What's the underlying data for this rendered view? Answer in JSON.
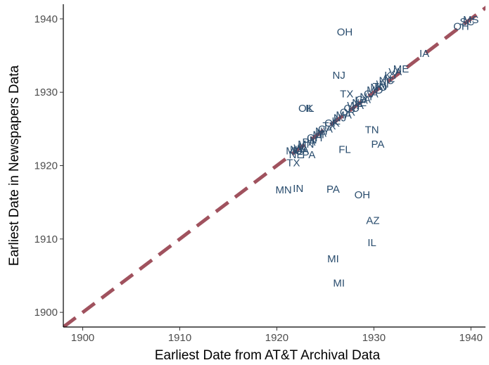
{
  "chart_data": {
    "type": "scatter",
    "marker": "text",
    "xlabel": "Earliest Date from AT&T Archival Data",
    "ylabel": "Earliest Date in Newspapers Data",
    "xlim": [
      1898,
      1941.5
    ],
    "ylim": [
      1898,
      1942
    ],
    "xticks": [
      1900,
      1910,
      1920,
      1930,
      1940
    ],
    "yticks": [
      1900,
      1910,
      1920,
      1930,
      1940
    ],
    "grid": false,
    "reference_line": {
      "type": "y=x",
      "style": "dashed",
      "color": "#a0525e"
    },
    "colors": {
      "labels": "#2a4d6e",
      "reference_line": "#a0525e"
    },
    "points": [
      {
        "x": 1927.0,
        "y": 1938.2,
        "label": "OH"
      },
      {
        "x": 1939.0,
        "y": 1939.0,
        "label": "OH"
      },
      {
        "x": 1939.6,
        "y": 1939.6,
        "label": "SC"
      },
      {
        "x": 1940.0,
        "y": 1939.9,
        "label": "MS"
      },
      {
        "x": 1935.2,
        "y": 1935.3,
        "label": "IA"
      },
      {
        "x": 1932.8,
        "y": 1933.2,
        "label": "ME"
      },
      {
        "x": 1932.2,
        "y": 1932.8,
        "label": "VA"
      },
      {
        "x": 1931.8,
        "y": 1932.3,
        "label": "KY"
      },
      {
        "x": 1931.3,
        "y": 1931.6,
        "label": "NC"
      },
      {
        "x": 1930.9,
        "y": 1931.1,
        "label": "WI"
      },
      {
        "x": 1930.5,
        "y": 1930.7,
        "label": "MO"
      },
      {
        "x": 1930.1,
        "y": 1930.3,
        "label": "MD"
      },
      {
        "x": 1929.7,
        "y": 1929.8,
        "label": "CA"
      },
      {
        "x": 1929.3,
        "y": 1929.4,
        "label": "NY"
      },
      {
        "x": 1928.9,
        "y": 1929.0,
        "label": "GA"
      },
      {
        "x": 1928.5,
        "y": 1928.6,
        "label": "NE"
      },
      {
        "x": 1928.1,
        "y": 1928.2,
        "label": "WA"
      },
      {
        "x": 1927.7,
        "y": 1927.8,
        "label": "CO"
      },
      {
        "x": 1927.3,
        "y": 1927.3,
        "label": "OR"
      },
      {
        "x": 1926.9,
        "y": 1926.9,
        "label": "MA"
      },
      {
        "x": 1926.5,
        "y": 1926.5,
        "label": "NJ"
      },
      {
        "x": 1926.1,
        "y": 1926.1,
        "label": "IL"
      },
      {
        "x": 1925.7,
        "y": 1925.8,
        "label": "OK"
      },
      {
        "x": 1925.4,
        "y": 1925.4,
        "label": "TX"
      },
      {
        "x": 1925.0,
        "y": 1925.0,
        "label": "CA"
      },
      {
        "x": 1924.7,
        "y": 1924.7,
        "label": "NY"
      },
      {
        "x": 1924.3,
        "y": 1924.2,
        "label": "MI"
      },
      {
        "x": 1923.9,
        "y": 1923.8,
        "label": "OH"
      },
      {
        "x": 1923.6,
        "y": 1923.5,
        "label": "IN"
      },
      {
        "x": 1923.3,
        "y": 1923.2,
        "label": "PA"
      },
      {
        "x": 1923.0,
        "y": 1922.9,
        "label": "MN"
      },
      {
        "x": 1922.7,
        "y": 1922.6,
        "label": "IL"
      },
      {
        "x": 1922.4,
        "y": 1922.4,
        "label": "WI"
      },
      {
        "x": 1922.1,
        "y": 1922.2,
        "label": "NY"
      },
      {
        "x": 1921.8,
        "y": 1922.0,
        "label": "MO"
      },
      {
        "x": 1922.0,
        "y": 1921.5,
        "label": "NE"
      },
      {
        "x": 1922.5,
        "y": 1922.1,
        "label": "MA"
      },
      {
        "x": 1923.3,
        "y": 1921.5,
        "label": "PA"
      },
      {
        "x": 1921.7,
        "y": 1920.4,
        "label": "TX"
      },
      {
        "x": 1930.6,
        "y": 1930.8,
        "label": "TN"
      },
      {
        "x": 1931.5,
        "y": 1931.9,
        "label": "AL"
      },
      {
        "x": 1924.6,
        "y": 1924.4,
        "label": "IA"
      },
      {
        "x": 1928.7,
        "y": 1928.9,
        "label": "LA"
      },
      {
        "x": 1926.4,
        "y": 1932.3,
        "label": "NJ"
      },
      {
        "x": 1927.2,
        "y": 1929.8,
        "label": "TX"
      },
      {
        "x": 1923.0,
        "y": 1927.8,
        "label": "OK"
      },
      {
        "x": 1923.4,
        "y": 1927.8,
        "label": "IL"
      },
      {
        "x": 1929.8,
        "y": 1924.9,
        "label": "TN"
      },
      {
        "x": 1930.4,
        "y": 1922.9,
        "label": "PA"
      },
      {
        "x": 1927.0,
        "y": 1922.2,
        "label": "FL"
      },
      {
        "x": 1920.7,
        "y": 1916.7,
        "label": "MN"
      },
      {
        "x": 1922.2,
        "y": 1916.9,
        "label": "IN"
      },
      {
        "x": 1925.8,
        "y": 1916.8,
        "label": "PA"
      },
      {
        "x": 1928.8,
        "y": 1916.0,
        "label": "OH"
      },
      {
        "x": 1929.9,
        "y": 1912.5,
        "label": "AZ"
      },
      {
        "x": 1929.8,
        "y": 1909.5,
        "label": "IL"
      },
      {
        "x": 1925.8,
        "y": 1907.3,
        "label": "MI"
      },
      {
        "x": 1926.4,
        "y": 1904.0,
        "label": "MI"
      }
    ]
  }
}
